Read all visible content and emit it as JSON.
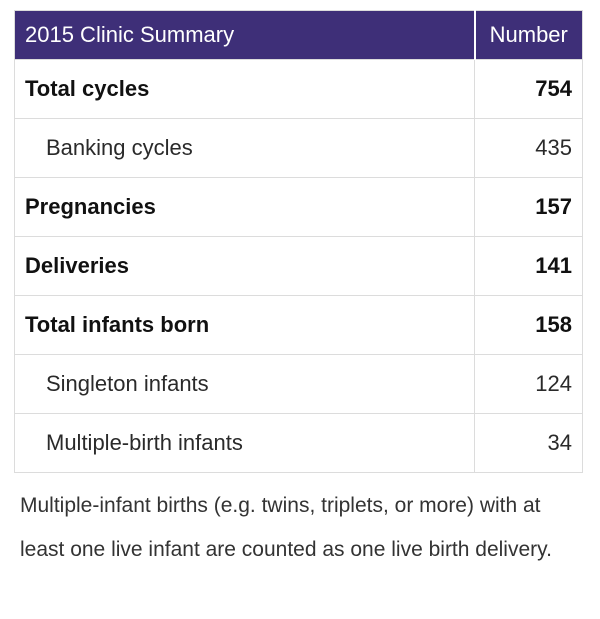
{
  "table": {
    "header": {
      "label": "2015 Clinic Summary",
      "value": "Number"
    },
    "rows": [
      {
        "label": "Total cycles",
        "value": "754",
        "style": "bold"
      },
      {
        "label": "Banking cycles",
        "value": "435",
        "style": "sub"
      },
      {
        "label": "Pregnancies",
        "value": "157",
        "style": "bold"
      },
      {
        "label": "Deliveries",
        "value": "141",
        "style": "bold"
      },
      {
        "label": "Total infants born",
        "value": "158",
        "style": "bold"
      },
      {
        "label": "Singleton infants",
        "value": "124",
        "style": "sub"
      },
      {
        "label": "Multiple-birth infants",
        "value": "34",
        "style": "sub"
      }
    ],
    "colors": {
      "header_bg": "#3e2f78",
      "header_text": "#ffffff",
      "border": "#dcdcdc"
    }
  },
  "footnote": "Multiple-infant births (e.g. twins, triplets, or more) with at least one live infant are counted as one live birth delivery."
}
